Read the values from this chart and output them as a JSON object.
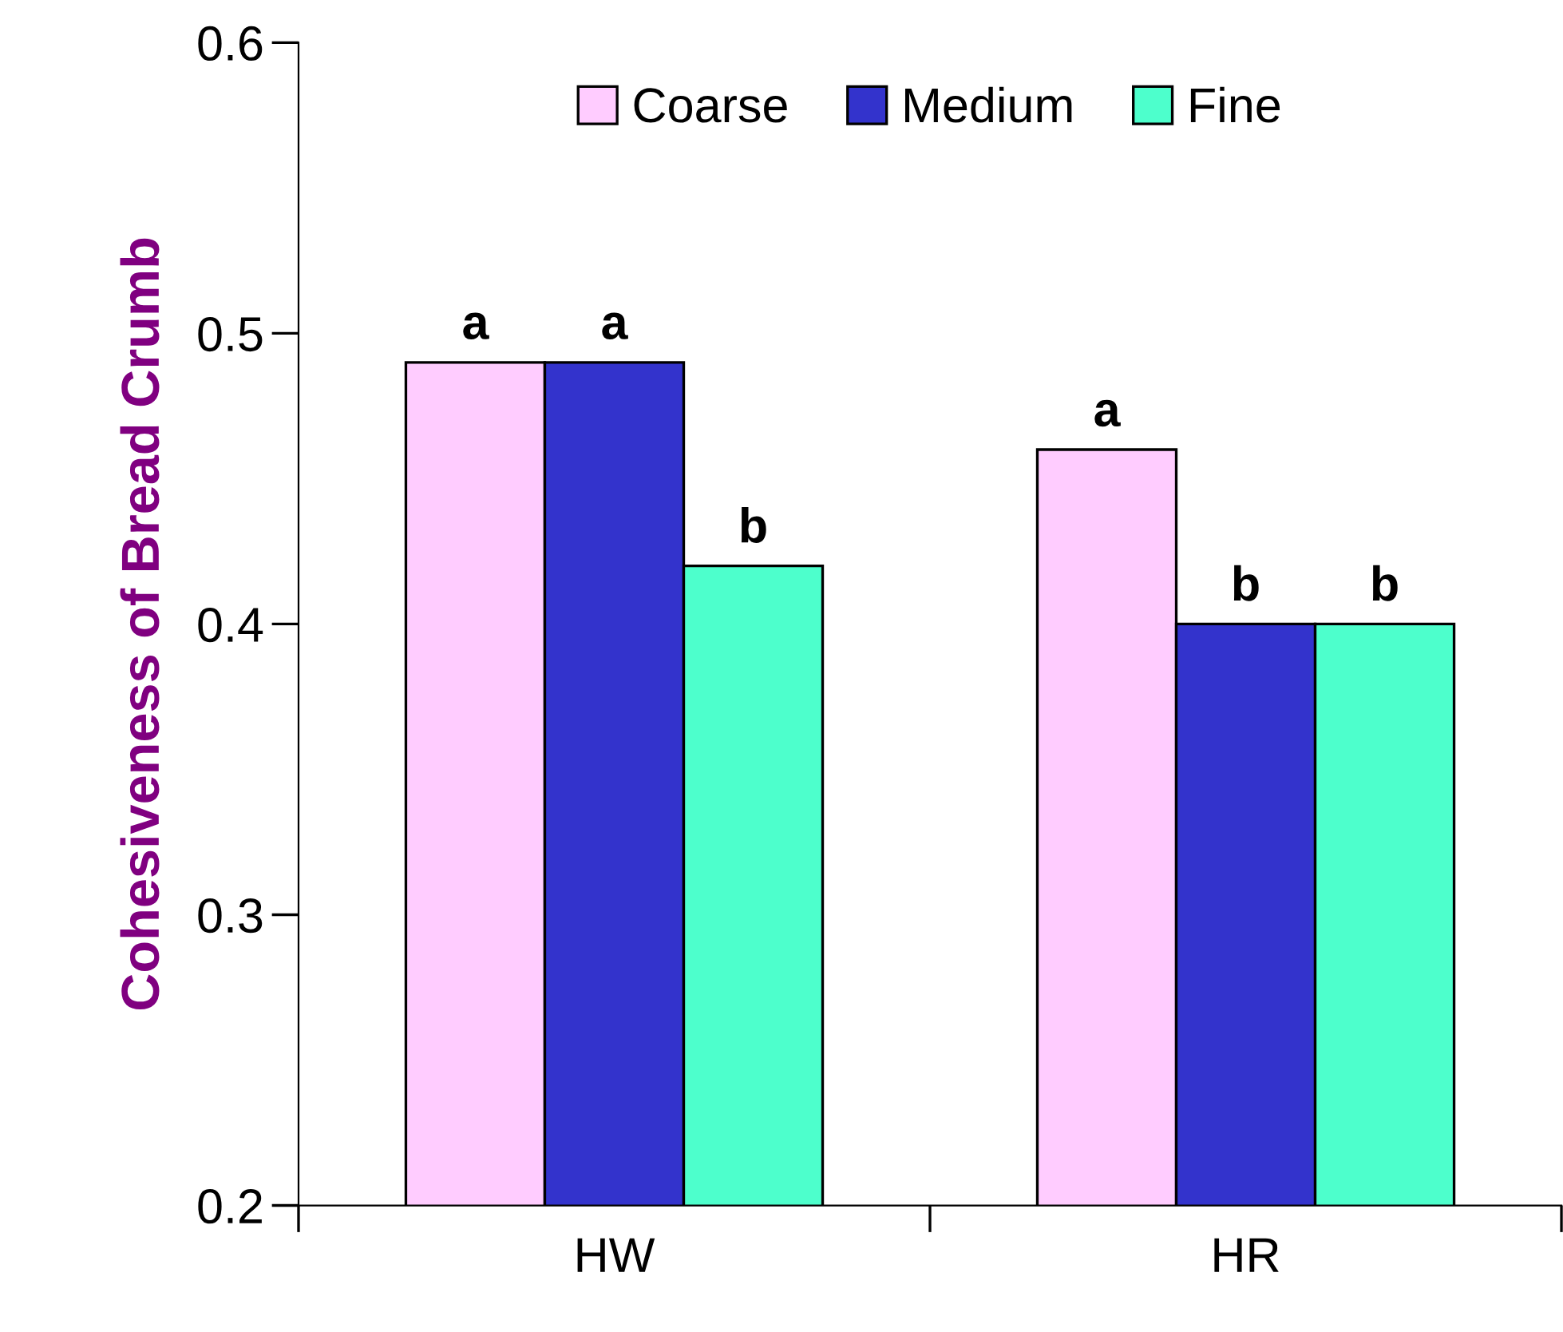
{
  "chart_data": {
    "type": "bar",
    "ylabel": "Cohesiveness of Bread Crumb",
    "categories": [
      "HW",
      "HR"
    ],
    "series": [
      {
        "name": "Coarse",
        "color": "#ffccff",
        "values": [
          0.49,
          0.46
        ],
        "value_labels": [
          "a",
          "a"
        ]
      },
      {
        "name": "Medium",
        "color": "#3333cc",
        "values": [
          0.49,
          0.4
        ],
        "value_labels": [
          "a",
          "b"
        ]
      },
      {
        "name": "Fine",
        "color": "#4dffcc",
        "values": [
          0.42,
          0.4
        ],
        "value_labels": [
          "b",
          "b"
        ]
      }
    ],
    "ylim": [
      0.2,
      0.6
    ],
    "yticks": [
      0.2,
      0.3,
      0.4,
      0.5,
      0.6
    ],
    "grid": false,
    "legend": "top"
  }
}
